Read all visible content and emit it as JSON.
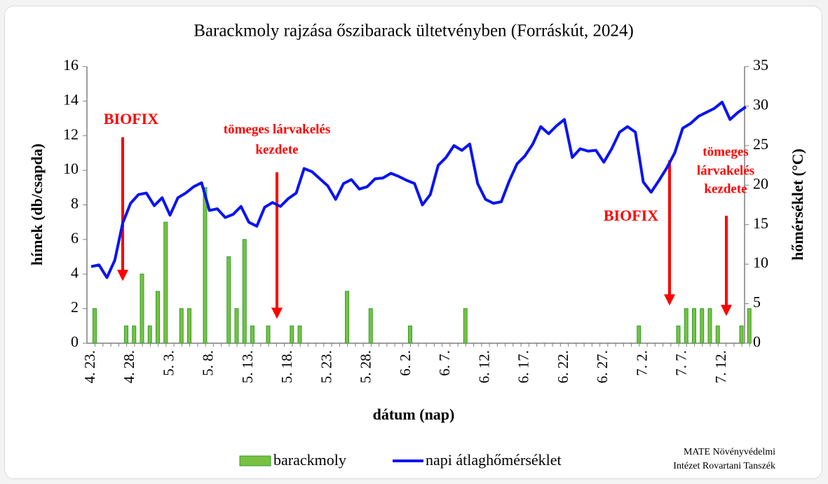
{
  "chart_data": {
    "type": "bar_line",
    "title": "Barackmoly rajzása őszibarack ültetvényben (Forráskút, 2024)",
    "x_label": "dátum (nap)",
    "y_label": "hímek (db/csapda)",
    "y2_label": "hőmérséklet (°C)",
    "categories": [
      "4. 23.",
      null,
      null,
      null,
      null,
      "4. 28.",
      null,
      null,
      null,
      null,
      "5. 3.",
      null,
      null,
      null,
      null,
      "5. 8.",
      null,
      null,
      null,
      null,
      "5. 13.",
      null,
      null,
      null,
      null,
      "5. 18.",
      null,
      null,
      null,
      null,
      "5. 23.",
      null,
      null,
      null,
      null,
      "5. 28.",
      null,
      null,
      null,
      null,
      "6. 2.",
      null,
      null,
      null,
      null,
      "6. 7.",
      null,
      null,
      null,
      null,
      "6. 12.",
      null,
      null,
      null,
      null,
      "6. 17.",
      null,
      null,
      null,
      null,
      "6. 22.",
      null,
      null,
      null,
      null,
      "6. 27.",
      null,
      null,
      null,
      null,
      "7. 2.",
      null,
      null,
      null,
      null,
      "7. 7.",
      null,
      null,
      null,
      null,
      "7. 12.",
      null,
      null,
      null
    ],
    "series": [
      {
        "name": "barackmoly",
        "type": "bar",
        "color": "#7ac143",
        "edge": "#2ca02c",
        "values": [
          2,
          0,
          0,
          0,
          1,
          1,
          4,
          1,
          3,
          7,
          0,
          2,
          2,
          0,
          9,
          0,
          0,
          5,
          2,
          6,
          1,
          0,
          1,
          0,
          0,
          1,
          1,
          0,
          0,
          0,
          0,
          0,
          3,
          0,
          0,
          2,
          0,
          0,
          0,
          0,
          1,
          0,
          0,
          0,
          0,
          0,
          0,
          2,
          0,
          0,
          0,
          0,
          0,
          0,
          0,
          0,
          0,
          0,
          0,
          0,
          0,
          0,
          0,
          0,
          0,
          0,
          0,
          0,
          0,
          1,
          0,
          0,
          0,
          0,
          1,
          2,
          2,
          2,
          2,
          1,
          0,
          0,
          1,
          2
        ]
      },
      {
        "name": "napi átlaghőmérséklet",
        "type": "line",
        "axis": "y2",
        "color": "#0a14f0",
        "values": [
          9.7,
          9.9,
          8.3,
          10.5,
          15.2,
          17.7,
          18.8,
          19.0,
          17.4,
          18.4,
          16.2,
          18.4,
          19.0,
          19.8,
          20.3,
          16.8,
          17.0,
          15.9,
          16.3,
          17.3,
          15.3,
          14.8,
          17.2,
          17.8,
          17.3,
          18.3,
          19.0,
          22.1,
          21.7,
          20.8,
          19.9,
          18.2,
          20.2,
          20.7,
          19.5,
          19.8,
          20.8,
          20.9,
          21.5,
          21.1,
          20.6,
          20.2,
          17.5,
          18.8,
          22.5,
          23.5,
          25.0,
          24.4,
          25.2,
          20.2,
          18.2,
          17.7,
          17.9,
          20.5,
          22.7,
          23.7,
          25.2,
          27.4,
          26.5,
          27.5,
          28.3,
          23.5,
          24.6,
          24.3,
          24.4,
          22.9,
          24.6,
          26.7,
          27.4,
          26.7,
          20.4,
          19.1,
          20.6,
          22.2,
          24.1,
          27.2,
          27.8,
          28.7,
          29.2,
          29.7,
          30.5,
          28.3,
          29.2,
          29.9
        ]
      }
    ],
    "ylim": [
      0,
      16
    ],
    "yticks": [
      0,
      2,
      4,
      6,
      8,
      10,
      12,
      14,
      16
    ],
    "y2lim": [
      0,
      35
    ],
    "y2ticks": [
      0,
      5,
      10,
      15,
      20,
      25,
      30,
      35
    ],
    "annotations": [
      {
        "lines": [
          "BIOFIX"
        ],
        "color": "#ff0000"
      },
      {
        "lines": [
          "tömeges lárvakelés",
          "kezdete"
        ],
        "color": "#ff0000"
      },
      {
        "lines": [
          "BIOFIX"
        ],
        "color": "#ff0000"
      },
      {
        "lines": [
          "tömeges",
          "lárvakelés",
          "kezdete"
        ],
        "color": "#ff0000"
      }
    ],
    "credit": [
      "MATE Növényvédelmi",
      "Intézet Rovartani Tanszék"
    ]
  }
}
